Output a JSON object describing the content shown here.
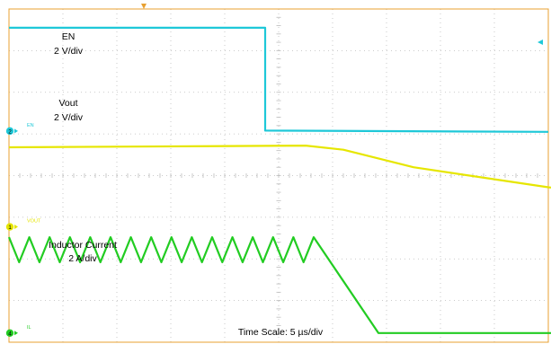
{
  "chart_data": {
    "type": "line",
    "title": "",
    "grid": true,
    "time_scale_label": "Time Scale: 5 µs/div",
    "x_units": "div",
    "xlim": [
      0,
      10
    ],
    "ylim": [
      0,
      8
    ],
    "colors": {
      "EN": "#1ec8d8",
      "Vout": "#e6e600",
      "IL": "#22cc22",
      "grid": "#bbbbbb",
      "frame": "#e8a030",
      "marker": "#e8a030"
    },
    "channel_markers": [
      {
        "num": "2",
        "color": "#1ec8d8",
        "level_div": 5.07,
        "tag": "EN"
      },
      {
        "num": "1",
        "color": "#e6e600",
        "level_div": 2.77,
        "tag": "VOUT"
      },
      {
        "num": "4",
        "color": "#22cc22",
        "level_div": 0.22,
        "tag": "IL"
      }
    ],
    "series": [
      {
        "name": "EN",
        "key": "EN",
        "scale": "2 V/div",
        "label_lines": [
          "EN",
          "2 V/div"
        ],
        "points_div": [
          [
            0.0,
            7.55
          ],
          [
            4.75,
            7.55
          ],
          [
            4.75,
            5.08
          ],
          [
            10.0,
            5.05
          ]
        ]
      },
      {
        "name": "Vout",
        "key": "Vout",
        "scale": "2 V/div",
        "label_lines": [
          "Vout",
          "2 V/div"
        ],
        "points_div": [
          [
            0.0,
            4.68
          ],
          [
            5.5,
            4.72
          ],
          [
            6.2,
            4.62
          ],
          [
            7.5,
            4.2
          ],
          [
            10.0,
            3.72
          ],
          [
            12.0,
            3.45
          ],
          [
            14.0,
            3.25
          ],
          [
            16.0,
            3.08
          ],
          [
            18.0,
            2.93
          ],
          [
            20.0,
            2.8
          ]
        ]
      },
      {
        "name": "Inductor Current",
        "key": "IL",
        "scale": "2 A/div",
        "label_lines": [
          "Inductor Current",
          "2 A/div"
        ],
        "ripple": {
          "start": 0.0,
          "end": 5.65,
          "cycles": 15,
          "high": 2.52,
          "low": 1.92
        },
        "points_div": [
          [
            5.65,
            2.52
          ],
          [
            6.85,
            0.22
          ],
          [
            20.0,
            0.22
          ]
        ]
      }
    ]
  }
}
